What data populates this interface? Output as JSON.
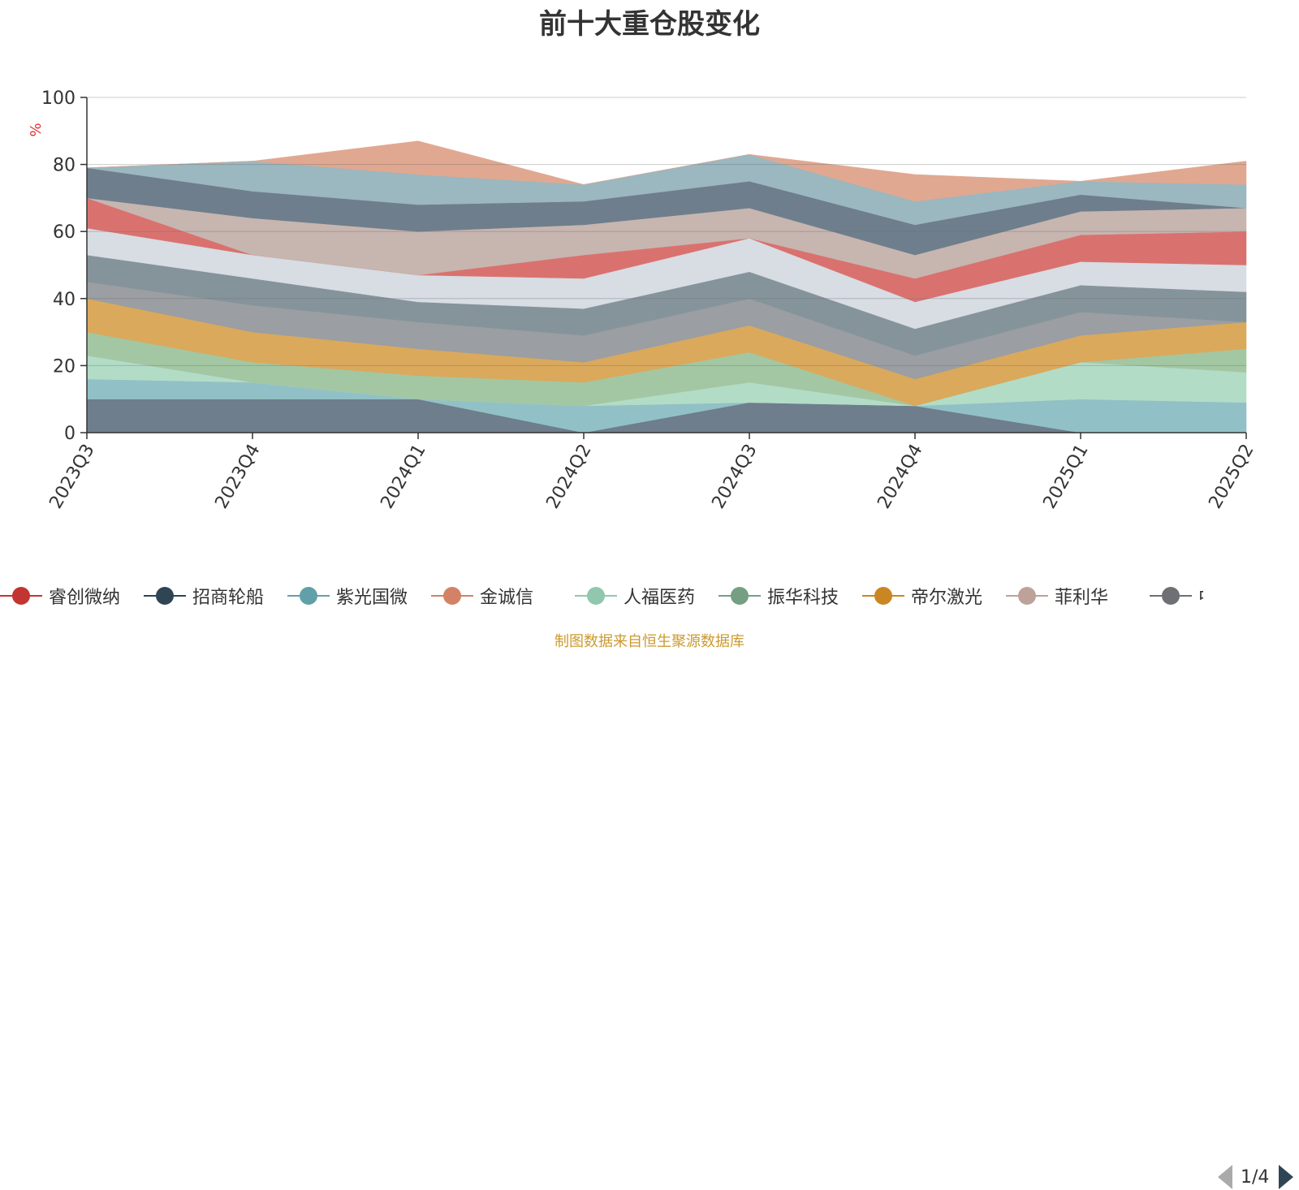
{
  "title": "前十大重仓股变化",
  "source_note": "制图数据来自恒生聚源数据库",
  "legend": {
    "items": [
      {
        "name": "睿创微纳",
        "color": "#c23531"
      },
      {
        "name": "招商轮船",
        "color": "#2f4554"
      },
      {
        "name": "紫光国微",
        "color": "#61a0a8"
      },
      {
        "name": "金诚信",
        "color": "#d48265"
      },
      {
        "name": "人福医药",
        "color": "#91c7ae"
      },
      {
        "name": "振华科技",
        "color": "#749f83"
      },
      {
        "name": "帝尔激光",
        "color": "#ca8622"
      },
      {
        "name": "菲利华",
        "color": "#bda29a"
      },
      {
        "name": "中船",
        "color": "#6e7074"
      }
    ],
    "page_text": "1/4"
  },
  "chart_data": {
    "type": "area",
    "stacked": true,
    "y_unit": "%",
    "ylim": [
      0,
      100
    ],
    "yticks": [
      0,
      20,
      40,
      60,
      80,
      100
    ],
    "grid": true,
    "categories": [
      "2023Q3",
      "2023Q4",
      "2024Q1",
      "2024Q2",
      "2024Q3",
      "2024Q4",
      "2025Q1",
      "2025Q2"
    ],
    "boundaries": [
      [
        10,
        10,
        10,
        0,
        9,
        8,
        0,
        0
      ],
      [
        16,
        15,
        10,
        8,
        9,
        8,
        10,
        9
      ],
      [
        23,
        15,
        10,
        8,
        15,
        8,
        21,
        18
      ],
      [
        30,
        21,
        17,
        15,
        24,
        8,
        21,
        25
      ],
      [
        40,
        30,
        25,
        21,
        32,
        16,
        29,
        33
      ],
      [
        45,
        38,
        33,
        29,
        40,
        23,
        36,
        33
      ],
      [
        53,
        46,
        39,
        37,
        48,
        31,
        44,
        42
      ],
      [
        61,
        53,
        47,
        46,
        58,
        39,
        51,
        50
      ],
      [
        70,
        53,
        47,
        53,
        58,
        46,
        59,
        60
      ],
      [
        70,
        64,
        60,
        62,
        67,
        53,
        66,
        67
      ],
      [
        79,
        72,
        68,
        69,
        75,
        62,
        71,
        67
      ],
      [
        79,
        81,
        77,
        74,
        83,
        69,
        75,
        74
      ],
      [
        79,
        81,
        87,
        74,
        83,
        77,
        75,
        81
      ],
      [
        100,
        100,
        100,
        100,
        100,
        100,
        100,
        100
      ]
    ],
    "band_colors": [
      "#6e7e8c",
      "#91c1c6",
      "#b3dcc7",
      "#a3c7a3",
      "#daa95c",
      "#9b9ea2",
      "#85949b",
      "#d8dce3",
      "#d9726f",
      "#c7b5b0",
      "#6e7e8c",
      "#9bb7bf",
      "#e0a891"
    ]
  }
}
